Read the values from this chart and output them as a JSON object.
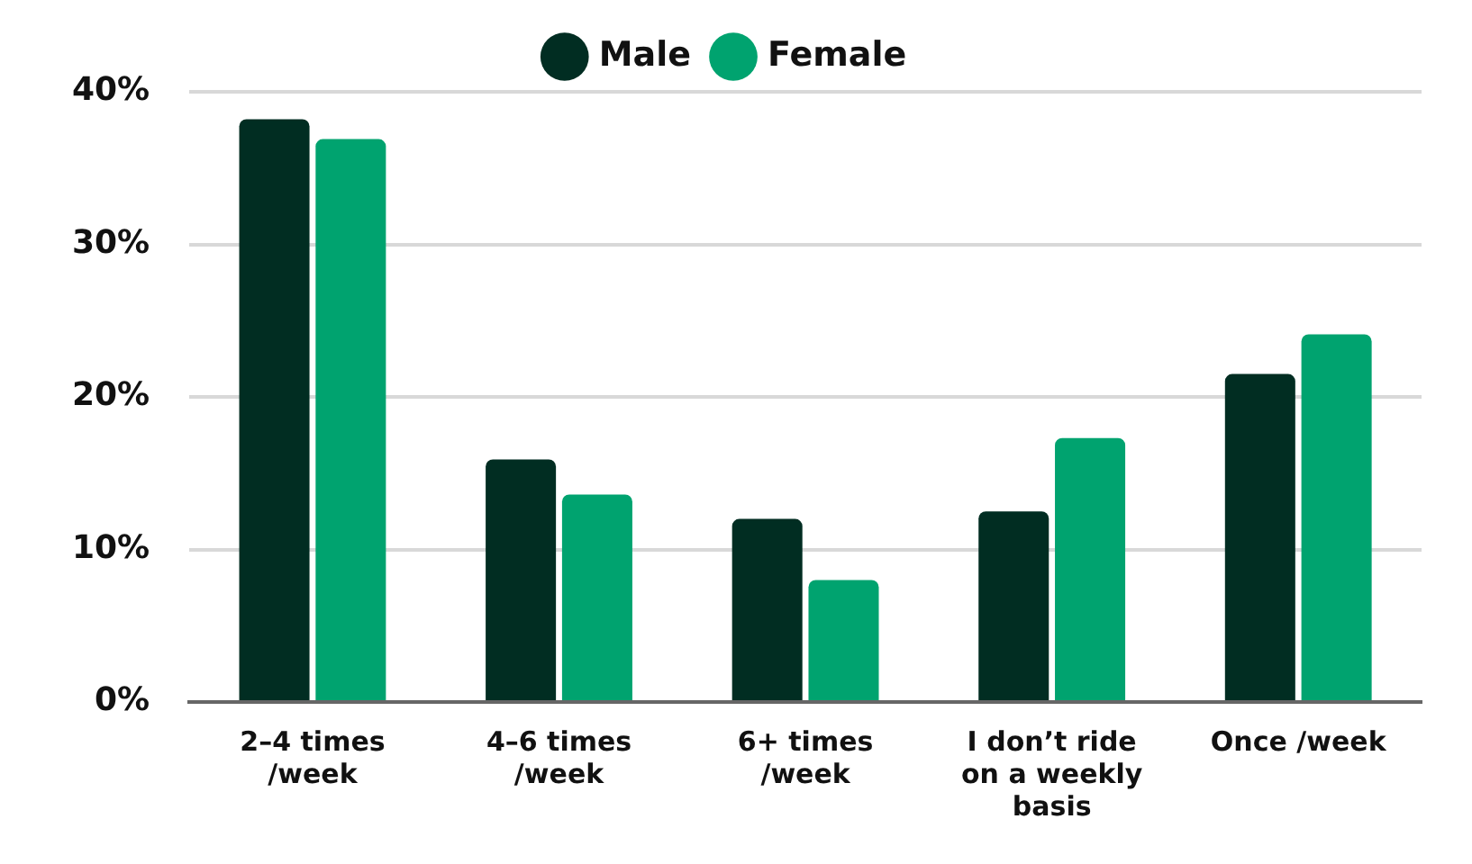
{
  "chart_data": {
    "type": "bar",
    "categories": [
      "2–4 times /week",
      "4–6 times /week",
      "6+ times /week",
      "I don’t ride on a weekly basis",
      "Once /week"
    ],
    "series": [
      {
        "name": "Male",
        "color": "#012d22",
        "values": [
          38.2,
          15.9,
          12.0,
          12.5,
          21.5
        ]
      },
      {
        "name": "Female",
        "color": "#00a36f",
        "values": [
          36.9,
          13.6,
          8.0,
          17.3,
          24.1
        ]
      }
    ],
    "ylim": [
      0,
      40
    ],
    "yticks": [
      {
        "value": 0,
        "label": "0%"
      },
      {
        "value": 10,
        "label": "10%"
      },
      {
        "value": 20,
        "label": "20%"
      },
      {
        "value": 30,
        "label": "30%"
      },
      {
        "value": 40,
        "label": "40%"
      }
    ],
    "grid": "y",
    "legend": "top"
  }
}
